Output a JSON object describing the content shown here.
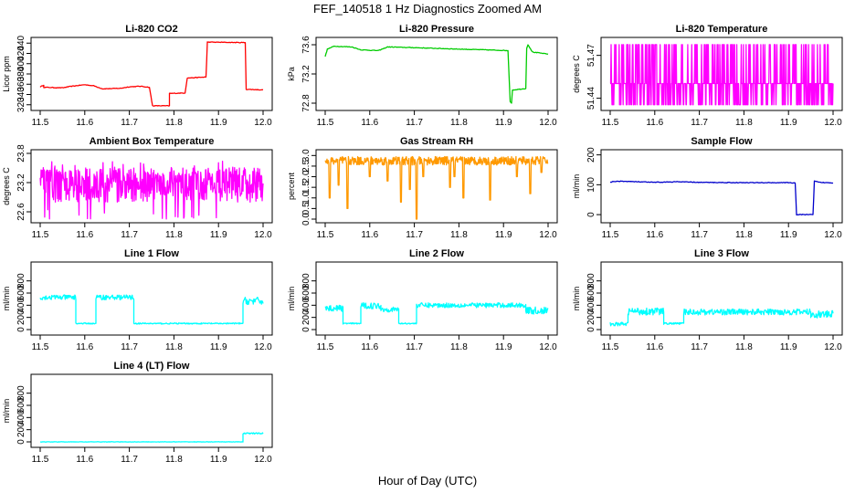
{
  "figure": {
    "title": "FEF_140518  1 Hz Diagnostics Zoomed AM",
    "xlabel": "Hour of Day (UTC)"
  },
  "chart_data": [
    {
      "type": "line",
      "title": "Li-820 CO2",
      "ylabel": "Licor ppm",
      "color": "#ff0000",
      "xlim": [
        11.5,
        12.0
      ],
      "ylim": [
        316,
        444
      ],
      "xticks": [
        "11.5",
        "11.6",
        "11.7",
        "11.8",
        "11.9",
        "12.0"
      ],
      "yticks": [
        "320",
        "340",
        "360",
        "380",
        "400",
        "420",
        "440"
      ],
      "points": [
        [
          11.5,
          355
        ],
        [
          11.508,
          358
        ],
        [
          11.508,
          354
        ],
        [
          11.55,
          353
        ],
        [
          11.57,
          356
        ],
        [
          11.6,
          359
        ],
        [
          11.62,
          357
        ],
        [
          11.64,
          351
        ],
        [
          11.68,
          352
        ],
        [
          11.7,
          355
        ],
        [
          11.725,
          356
        ],
        [
          11.745,
          354
        ],
        [
          11.752,
          318
        ],
        [
          11.79,
          318
        ],
        [
          11.79,
          342
        ],
        [
          11.825,
          343
        ],
        [
          11.83,
          372
        ],
        [
          11.872,
          374
        ],
        [
          11.875,
          442
        ],
        [
          11.96,
          441
        ],
        [
          11.962,
          350
        ],
        [
          12.0,
          349
        ]
      ]
    },
    {
      "type": "line",
      "title": "Li-820 Pressure",
      "ylabel": "kPa",
      "color": "#00cc00",
      "xlim": [
        11.5,
        12.0
      ],
      "ylim": [
        72.75,
        73.65
      ],
      "xticks": [
        "11.5",
        "11.6",
        "11.7",
        "11.8",
        "11.9",
        "12.0"
      ],
      "yticks": [
        "72.8",
        "73.2",
        "73.6"
      ],
      "points": [
        [
          11.5,
          73.44
        ],
        [
          11.505,
          73.54
        ],
        [
          11.52,
          73.58
        ],
        [
          11.56,
          73.57
        ],
        [
          11.58,
          73.53
        ],
        [
          11.62,
          73.52
        ],
        [
          11.64,
          73.57
        ],
        [
          11.7,
          73.56
        ],
        [
          11.8,
          73.54
        ],
        [
          11.86,
          73.53
        ],
        [
          11.91,
          73.52
        ],
        [
          11.915,
          72.82
        ],
        [
          11.918,
          72.8
        ],
        [
          11.92,
          72.98
        ],
        [
          11.95,
          73.0
        ],
        [
          11.952,
          73.55
        ],
        [
          11.955,
          73.6
        ],
        [
          11.965,
          73.5
        ],
        [
          11.99,
          73.48
        ],
        [
          12.0,
          73.47
        ]
      ]
    },
    {
      "type": "line",
      "title": "Li-820 Temperature",
      "ylabel": "degrees C",
      "color": "#ff00ff",
      "xlim": [
        11.5,
        12.0
      ],
      "ylim": [
        51.434,
        51.48
      ],
      "xticks": [
        "11.5",
        "11.6",
        "11.7",
        "11.8",
        "11.9",
        "12.0"
      ],
      "yticks": [
        "51.44",
        "51.47"
      ],
      "style": "toggle",
      "series_levels": [
        51.4355,
        51.4503,
        51.4775
      ],
      "note_values": "signal toggles between 51.4355, 51.4503 and 51.4775 degrees C"
    },
    {
      "type": "line",
      "title": "Ambient Box Temperature",
      "ylabel": "degrees C",
      "color": "#ff00ff",
      "xlim": [
        11.5,
        12.0
      ],
      "ylim": [
        22.45,
        23.8
      ],
      "xticks": [
        "11.5",
        "11.6",
        "11.7",
        "11.8",
        "11.9",
        "12.0"
      ],
      "yticks": [
        "22.6",
        "23.2",
        "23.8"
      ],
      "style": "noise",
      "center": 23.15,
      "spread": 0.35,
      "min": 22.45,
      "max": 23.65
    },
    {
      "type": "line",
      "title": "Gas Stream RH",
      "ylabel": "percent",
      "color": "#ff9900",
      "xlim": [
        11.5,
        12.0
      ],
      "ylim": [
        0,
        3.1
      ],
      "xticks": [
        "11.5",
        "11.6",
        "11.7",
        "11.8",
        "11.9",
        "12.0"
      ],
      "yticks": [
        "0.0",
        "0.5",
        "1.0",
        "1.5",
        "2.0",
        "2.5",
        "3.0"
      ],
      "style": "dips",
      "center": 2.75,
      "spread": 0.2,
      "dips": [
        [
          11.51,
          1.0
        ],
        [
          11.53,
          1.6
        ],
        [
          11.55,
          0.5
        ],
        [
          11.6,
          2.0
        ],
        [
          11.64,
          1.8
        ],
        [
          11.67,
          0.8
        ],
        [
          11.69,
          1.4
        ],
        [
          11.705,
          0.0
        ],
        [
          11.72,
          2.0
        ],
        [
          11.78,
          1.5
        ],
        [
          11.79,
          2.0
        ],
        [
          11.81,
          1.0
        ],
        [
          11.87,
          0.9
        ],
        [
          11.93,
          2.0
        ],
        [
          11.96,
          1.2
        ],
        [
          11.985,
          2.2
        ]
      ]
    },
    {
      "type": "line",
      "title": "Sample Flow",
      "ylabel": "ml/min",
      "color": "#0000cc",
      "xlim": [
        11.5,
        12.0
      ],
      "ylim": [
        -15,
        205
      ],
      "xticks": [
        "11.5",
        "11.6",
        "11.7",
        "11.8",
        "11.9",
        "12.0"
      ],
      "yticks": [
        "0",
        "100",
        "200"
      ],
      "points": [
        [
          11.5,
          108
        ],
        [
          11.505,
          110
        ],
        [
          11.52,
          112
        ],
        [
          11.56,
          110
        ],
        [
          11.6,
          108
        ],
        [
          11.65,
          110
        ],
        [
          11.7,
          108
        ],
        [
          11.8,
          107
        ],
        [
          11.9,
          107
        ],
        [
          11.915,
          106
        ],
        [
          11.918,
          0
        ],
        [
          11.955,
          0
        ],
        [
          11.958,
          112
        ],
        [
          11.97,
          108
        ],
        [
          12.0,
          106
        ]
      ]
    },
    {
      "type": "line",
      "title": "Line 1 Flow",
      "ylabel": "ml/min",
      "color": "#00ffff",
      "xlim": [
        11.5,
        12.0
      ],
      "ylim": [
        -30,
        1050
      ],
      "xticks": [
        "11.5",
        "11.6",
        "11.7",
        "11.8",
        "11.9",
        "12.0"
      ],
      "yticks": [
        "0",
        "200",
        "400",
        "600",
        "800"
      ],
      "bands": [
        [
          11.5,
          11.58,
          530,
          40
        ],
        [
          11.58,
          11.625,
          100,
          10
        ],
        [
          11.625,
          11.71,
          530,
          40
        ],
        [
          11.71,
          11.955,
          100,
          10
        ],
        [
          11.955,
          12.0,
          470,
          60
        ]
      ]
    },
    {
      "type": "line",
      "title": "Line 2 Flow",
      "ylabel": "ml/min",
      "color": "#00ffff",
      "xlim": [
        11.5,
        12.0
      ],
      "ylim": [
        -30,
        1050
      ],
      "xticks": [
        "11.5",
        "11.6",
        "11.7",
        "11.8",
        "11.9",
        "12.0"
      ],
      "yticks": [
        "0",
        "200",
        "400",
        "600",
        "800"
      ],
      "bands": [
        [
          11.5,
          11.54,
          350,
          50
        ],
        [
          11.54,
          11.58,
          100,
          10
        ],
        [
          11.58,
          11.625,
          390,
          50
        ],
        [
          11.625,
          11.665,
          330,
          40
        ],
        [
          11.665,
          11.705,
          100,
          10
        ],
        [
          11.705,
          11.95,
          400,
          40
        ],
        [
          11.95,
          12.0,
          310,
          60
        ]
      ]
    },
    {
      "type": "line",
      "title": "Line 3 Flow",
      "ylabel": "ml/min",
      "color": "#00ffff",
      "xlim": [
        11.5,
        12.0
      ],
      "ylim": [
        -30,
        1050
      ],
      "xticks": [
        "11.5",
        "11.6",
        "11.7",
        "11.8",
        "11.9",
        "12.0"
      ],
      "yticks": [
        "0",
        "200",
        "400",
        "600",
        "800"
      ],
      "bands": [
        [
          11.5,
          11.54,
          90,
          30
        ],
        [
          11.54,
          11.62,
          300,
          60
        ],
        [
          11.62,
          11.665,
          100,
          15
        ],
        [
          11.665,
          11.95,
          290,
          50
        ],
        [
          11.95,
          12.0,
          250,
          60
        ]
      ]
    },
    {
      "type": "line",
      "title": "Line 4 (LT) Flow",
      "ylabel": "ml/min",
      "color": "#00ffff",
      "xlim": [
        11.5,
        12.0
      ],
      "ylim": [
        -30,
        1050
      ],
      "xticks": [
        "11.5",
        "11.6",
        "11.7",
        "11.8",
        "11.9",
        "12.0"
      ],
      "yticks": [
        "0",
        "200",
        "400",
        "600",
        "800"
      ],
      "bands": [
        [
          11.5,
          11.955,
          0,
          3
        ],
        [
          11.955,
          12.0,
          140,
          10
        ]
      ]
    }
  ]
}
